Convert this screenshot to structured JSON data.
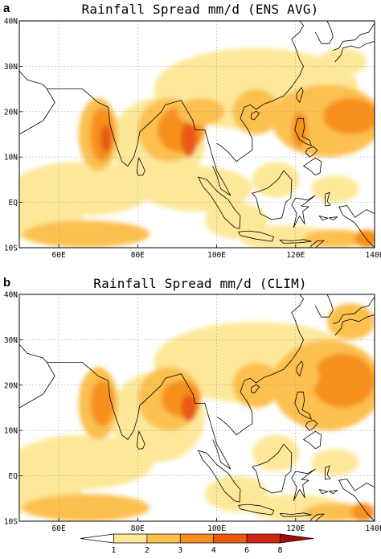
{
  "panels": [
    {
      "letter": "a",
      "title": "Rainfall Spread mm/d (ENS AVG)",
      "patches": [
        {
          "lon": 66,
          "lat": 3,
          "rx": 18,
          "ry": 6,
          "level": 1
        },
        {
          "lon": 95,
          "lat": 3,
          "rx": 14,
          "ry": 5,
          "level": 1
        },
        {
          "lon": 56,
          "lat": -4,
          "rx": 10,
          "ry": 5,
          "level": 1
        },
        {
          "lon": 67,
          "lat": -7,
          "rx": 16,
          "ry": 3,
          "level": 2
        },
        {
          "lon": 85,
          "lat": 13,
          "rx": 12,
          "ry": 10,
          "level": 1
        },
        {
          "lon": 110,
          "lat": 25,
          "rx": 26,
          "ry": 9,
          "level": 1
        },
        {
          "lon": 128,
          "lat": 18,
          "rx": 14,
          "ry": 8,
          "level": 2
        },
        {
          "lon": 134,
          "lat": 19,
          "rx": 7,
          "ry": 4,
          "level": 3
        },
        {
          "lon": 70,
          "lat": 15,
          "rx": 5,
          "ry": 8,
          "level": 2
        },
        {
          "lon": 71,
          "lat": 15,
          "rx": 3,
          "ry": 6,
          "level": 3
        },
        {
          "lon": 72,
          "lat": 14,
          "rx": 1.5,
          "ry": 3,
          "level": 4
        },
        {
          "lon": 88,
          "lat": 16,
          "rx": 8,
          "ry": 7,
          "level": 2
        },
        {
          "lon": 91,
          "lat": 16,
          "rx": 6,
          "ry": 5,
          "level": 3
        },
        {
          "lon": 93,
          "lat": 14,
          "rx": 2,
          "ry": 4,
          "level": 4
        },
        {
          "lon": 96,
          "lat": 20,
          "rx": 6,
          "ry": 3,
          "level": 2
        },
        {
          "lon": 110,
          "lat": 20,
          "rx": 6,
          "ry": 5,
          "level": 2
        },
        {
          "lon": 118,
          "lat": 19,
          "rx": 3,
          "ry": 5,
          "level": 2
        },
        {
          "lon": 121,
          "lat": 16,
          "rx": 2,
          "ry": 4,
          "level": 3
        },
        {
          "lon": 115,
          "lat": 5,
          "rx": 6,
          "ry": 4,
          "level": 1
        },
        {
          "lon": 130,
          "lat": 3,
          "rx": 6,
          "ry": 3,
          "level": 1
        },
        {
          "lon": 105,
          "lat": -4,
          "rx": 8,
          "ry": 4,
          "level": 1
        },
        {
          "lon": 118,
          "lat": -8,
          "rx": 12,
          "ry": 3,
          "level": 1
        },
        {
          "lon": 130,
          "lat": -8,
          "rx": 8,
          "ry": 2,
          "level": 2
        },
        {
          "lon": 138,
          "lat": -8,
          "rx": 3,
          "ry": 2,
          "level": 3
        },
        {
          "lon": 132,
          "lat": 31,
          "rx": 6,
          "ry": 3,
          "level": 1
        }
      ]
    },
    {
      "letter": "b",
      "title": "Rainfall Spread mm/d (CLIM)",
      "patches": [
        {
          "lon": 66,
          "lat": 3,
          "rx": 18,
          "ry": 6,
          "level": 1
        },
        {
          "lon": 56,
          "lat": -4,
          "rx": 10,
          "ry": 5,
          "level": 1
        },
        {
          "lon": 67,
          "lat": -7,
          "rx": 16,
          "ry": 3,
          "level": 2
        },
        {
          "lon": 85,
          "lat": 13,
          "rx": 12,
          "ry": 10,
          "level": 1
        },
        {
          "lon": 110,
          "lat": 25,
          "rx": 26,
          "ry": 9,
          "level": 1
        },
        {
          "lon": 128,
          "lat": 20,
          "rx": 14,
          "ry": 10,
          "level": 2
        },
        {
          "lon": 132,
          "lat": 21,
          "rx": 8,
          "ry": 6,
          "level": 3
        },
        {
          "lon": 70,
          "lat": 16,
          "rx": 5,
          "ry": 8,
          "level": 2
        },
        {
          "lon": 71,
          "lat": 16,
          "rx": 3,
          "ry": 5,
          "level": 3
        },
        {
          "lon": 88,
          "lat": 17,
          "rx": 8,
          "ry": 7,
          "level": 2
        },
        {
          "lon": 91,
          "lat": 17,
          "rx": 5,
          "ry": 4,
          "level": 3
        },
        {
          "lon": 93,
          "lat": 15,
          "rx": 2,
          "ry": 3,
          "level": 4
        },
        {
          "lon": 110,
          "lat": 20,
          "rx": 6,
          "ry": 5,
          "level": 2
        },
        {
          "lon": 120,
          "lat": 22,
          "rx": 6,
          "ry": 4,
          "level": 2
        },
        {
          "lon": 115,
          "lat": 5,
          "rx": 6,
          "ry": 4,
          "level": 1
        },
        {
          "lon": 130,
          "lat": 3,
          "rx": 6,
          "ry": 3,
          "level": 1
        },
        {
          "lon": 105,
          "lat": -4,
          "rx": 8,
          "ry": 4,
          "level": 1
        },
        {
          "lon": 120,
          "lat": -7,
          "rx": 12,
          "ry": 3,
          "level": 1
        },
        {
          "lon": 130,
          "lat": -8,
          "rx": 8,
          "ry": 2,
          "level": 2
        },
        {
          "lon": 137,
          "lat": -8,
          "rx": 3,
          "ry": 2,
          "level": 3
        },
        {
          "lon": 134,
          "lat": 34,
          "rx": 6,
          "ry": 4,
          "level": 2
        }
      ]
    }
  ],
  "map": {
    "lon_range": [
      50,
      140
    ],
    "lat_range": [
      -10,
      40
    ],
    "lon_ticks": [
      {
        "value": 60,
        "label": "60E"
      },
      {
        "value": 80,
        "label": "80E"
      },
      {
        "value": 100,
        "label": "100E"
      },
      {
        "value": 120,
        "label": "120E"
      },
      {
        "value": 140,
        "label": "140E"
      }
    ],
    "lat_ticks": [
      {
        "value": 40,
        "label": "40N"
      },
      {
        "value": 30,
        "label": "30N"
      },
      {
        "value": 20,
        "label": "20N"
      },
      {
        "value": 10,
        "label": "10N"
      },
      {
        "value": 0,
        "label": "EQ"
      },
      {
        "value": -10,
        "label": "10S"
      }
    ],
    "grid": "dotted",
    "background_color": "#ffffff",
    "coast_color": "#000000"
  },
  "colorbar": {
    "labels": [
      "1",
      "2",
      "3",
      "4",
      "6",
      "8"
    ],
    "colors": [
      "#ffffff",
      "#fde89a",
      "#fcc04f",
      "#f7901f",
      "#ea5a12",
      "#cf2712",
      "#9e0c0c"
    ]
  }
}
